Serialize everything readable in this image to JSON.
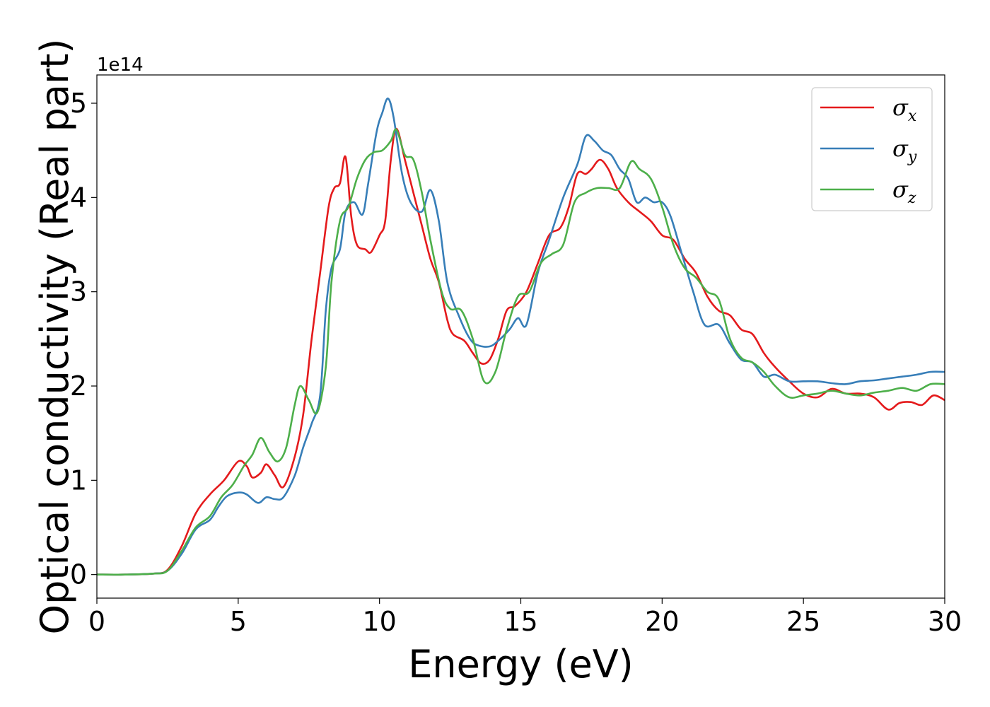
{
  "chart_data": {
    "type": "line",
    "xlabel": "Energy (eV)",
    "ylabel": "Optical conductivity (Real part)",
    "y_offset_label": "1e14",
    "xlim": [
      0,
      30
    ],
    "ylim": [
      -0.25,
      5.3
    ],
    "y_scale": 100000000000000.0,
    "x_ticks": [
      0,
      5,
      10,
      15,
      20,
      25,
      30
    ],
    "y_ticks": [
      0,
      1,
      2,
      3,
      4,
      5
    ],
    "grid": false,
    "legend_position": "top-right",
    "series": [
      {
        "name": "σx",
        "base": "σ",
        "sub": "x",
        "color": "#e41a1c",
        "points": [
          [
            0,
            0
          ],
          [
            1,
            0
          ],
          [
            2,
            0.01
          ],
          [
            2.5,
            0.05
          ],
          [
            3,
            0.3
          ],
          [
            3.5,
            0.65
          ],
          [
            4,
            0.85
          ],
          [
            4.5,
            1.0
          ],
          [
            5,
            1.2
          ],
          [
            5.3,
            1.15
          ],
          [
            5.5,
            1.03
          ],
          [
            5.8,
            1.08
          ],
          [
            6,
            1.17
          ],
          [
            6.3,
            1.05
          ],
          [
            6.6,
            0.93
          ],
          [
            7,
            1.25
          ],
          [
            7.3,
            1.7
          ],
          [
            7.6,
            2.5
          ],
          [
            7.9,
            3.2
          ],
          [
            8.2,
            3.9
          ],
          [
            8.4,
            4.1
          ],
          [
            8.6,
            4.15
          ],
          [
            8.8,
            4.43
          ],
          [
            9,
            3.8
          ],
          [
            9.2,
            3.5
          ],
          [
            9.5,
            3.45
          ],
          [
            9.7,
            3.42
          ],
          [
            10,
            3.6
          ],
          [
            10.2,
            3.75
          ],
          [
            10.4,
            4.4
          ],
          [
            10.6,
            4.73
          ],
          [
            10.9,
            4.4
          ],
          [
            11.2,
            4.05
          ],
          [
            11.5,
            3.7
          ],
          [
            11.8,
            3.35
          ],
          [
            12.1,
            3.1
          ],
          [
            12.4,
            2.7
          ],
          [
            12.6,
            2.55
          ],
          [
            13,
            2.48
          ],
          [
            13.3,
            2.35
          ],
          [
            13.6,
            2.24
          ],
          [
            13.9,
            2.28
          ],
          [
            14.2,
            2.5
          ],
          [
            14.5,
            2.8
          ],
          [
            14.8,
            2.85
          ],
          [
            15.2,
            3.0
          ],
          [
            15.6,
            3.3
          ],
          [
            16,
            3.6
          ],
          [
            16.4,
            3.68
          ],
          [
            16.7,
            3.9
          ],
          [
            17,
            4.25
          ],
          [
            17.3,
            4.25
          ],
          [
            17.5,
            4.3
          ],
          [
            17.8,
            4.4
          ],
          [
            18.1,
            4.3
          ],
          [
            18.4,
            4.1
          ],
          [
            18.8,
            3.95
          ],
          [
            19.2,
            3.85
          ],
          [
            19.6,
            3.75
          ],
          [
            20,
            3.6
          ],
          [
            20.4,
            3.55
          ],
          [
            20.8,
            3.35
          ],
          [
            21.2,
            3.2
          ],
          [
            21.6,
            2.95
          ],
          [
            22,
            2.8
          ],
          [
            22.4,
            2.75
          ],
          [
            22.8,
            2.6
          ],
          [
            23.2,
            2.55
          ],
          [
            23.6,
            2.35
          ],
          [
            24,
            2.2
          ],
          [
            24.5,
            2.05
          ],
          [
            25,
            1.92
          ],
          [
            25.5,
            1.88
          ],
          [
            26,
            1.97
          ],
          [
            26.5,
            1.92
          ],
          [
            27,
            1.92
          ],
          [
            27.5,
            1.88
          ],
          [
            28,
            1.75
          ],
          [
            28.4,
            1.82
          ],
          [
            28.8,
            1.83
          ],
          [
            29.2,
            1.8
          ],
          [
            29.6,
            1.9
          ],
          [
            30,
            1.85
          ]
        ]
      },
      {
        "name": "σy",
        "base": "σ",
        "sub": "y",
        "color": "#377eb8",
        "points": [
          [
            0,
            0
          ],
          [
            1,
            0
          ],
          [
            2,
            0.01
          ],
          [
            2.5,
            0.04
          ],
          [
            3,
            0.22
          ],
          [
            3.5,
            0.48
          ],
          [
            4,
            0.58
          ],
          [
            4.3,
            0.72
          ],
          [
            4.6,
            0.83
          ],
          [
            5,
            0.87
          ],
          [
            5.3,
            0.85
          ],
          [
            5.7,
            0.76
          ],
          [
            6,
            0.82
          ],
          [
            6.3,
            0.8
          ],
          [
            6.6,
            0.82
          ],
          [
            7,
            1.05
          ],
          [
            7.3,
            1.35
          ],
          [
            7.6,
            1.6
          ],
          [
            7.9,
            1.9
          ],
          [
            8.1,
            2.8
          ],
          [
            8.3,
            3.25
          ],
          [
            8.6,
            3.45
          ],
          [
            8.8,
            3.85
          ],
          [
            9.1,
            3.95
          ],
          [
            9.4,
            3.82
          ],
          [
            9.6,
            4.15
          ],
          [
            9.9,
            4.7
          ],
          [
            10.1,
            4.9
          ],
          [
            10.3,
            5.05
          ],
          [
            10.5,
            4.85
          ],
          [
            10.8,
            4.25
          ],
          [
            11.1,
            3.95
          ],
          [
            11.5,
            3.85
          ],
          [
            11.8,
            4.08
          ],
          [
            12.1,
            3.75
          ],
          [
            12.4,
            3.1
          ],
          [
            12.8,
            2.75
          ],
          [
            13.2,
            2.5
          ],
          [
            13.5,
            2.43
          ],
          [
            13.9,
            2.42
          ],
          [
            14.2,
            2.48
          ],
          [
            14.6,
            2.6
          ],
          [
            14.9,
            2.72
          ],
          [
            15.2,
            2.65
          ],
          [
            15.6,
            3.2
          ],
          [
            16,
            3.55
          ],
          [
            16.5,
            4.0
          ],
          [
            17,
            4.35
          ],
          [
            17.3,
            4.65
          ],
          [
            17.6,
            4.6
          ],
          [
            17.9,
            4.5
          ],
          [
            18.2,
            4.45
          ],
          [
            18.5,
            4.3
          ],
          [
            18.8,
            4.2
          ],
          [
            19.1,
            3.95
          ],
          [
            19.4,
            4.0
          ],
          [
            19.7,
            3.95
          ],
          [
            20,
            3.95
          ],
          [
            20.3,
            3.8
          ],
          [
            20.7,
            3.4
          ],
          [
            21.1,
            3.0
          ],
          [
            21.5,
            2.65
          ],
          [
            22,
            2.65
          ],
          [
            22.4,
            2.45
          ],
          [
            22.8,
            2.28
          ],
          [
            23.2,
            2.25
          ],
          [
            23.6,
            2.1
          ],
          [
            24,
            2.12
          ],
          [
            24.5,
            2.05
          ],
          [
            25,
            2.05
          ],
          [
            25.5,
            2.05
          ],
          [
            26,
            2.03
          ],
          [
            26.5,
            2.02
          ],
          [
            27,
            2.05
          ],
          [
            27.5,
            2.06
          ],
          [
            28,
            2.08
          ],
          [
            28.5,
            2.1
          ],
          [
            29,
            2.12
          ],
          [
            29.5,
            2.15
          ],
          [
            30,
            2.15
          ]
        ]
      },
      {
        "name": "σz",
        "base": "σ",
        "sub": "z",
        "color": "#4daf4a",
        "points": [
          [
            0,
            0
          ],
          [
            1,
            0
          ],
          [
            2,
            0.01
          ],
          [
            2.5,
            0.04
          ],
          [
            3,
            0.25
          ],
          [
            3.5,
            0.5
          ],
          [
            4,
            0.62
          ],
          [
            4.4,
            0.82
          ],
          [
            4.8,
            0.95
          ],
          [
            5.2,
            1.15
          ],
          [
            5.5,
            1.27
          ],
          [
            5.8,
            1.45
          ],
          [
            6.1,
            1.3
          ],
          [
            6.4,
            1.2
          ],
          [
            6.7,
            1.35
          ],
          [
            7,
            1.8
          ],
          [
            7.2,
            2.0
          ],
          [
            7.5,
            1.85
          ],
          [
            7.8,
            1.72
          ],
          [
            8.1,
            2.2
          ],
          [
            8.3,
            3.1
          ],
          [
            8.6,
            3.75
          ],
          [
            8.9,
            3.9
          ],
          [
            9.2,
            4.2
          ],
          [
            9.5,
            4.4
          ],
          [
            9.8,
            4.48
          ],
          [
            10.1,
            4.5
          ],
          [
            10.4,
            4.6
          ],
          [
            10.6,
            4.72
          ],
          [
            10.9,
            4.45
          ],
          [
            11.2,
            4.4
          ],
          [
            11.5,
            4.05
          ],
          [
            11.8,
            3.55
          ],
          [
            12.2,
            3.0
          ],
          [
            12.5,
            2.82
          ],
          [
            12.9,
            2.8
          ],
          [
            13.3,
            2.5
          ],
          [
            13.7,
            2.05
          ],
          [
            14.1,
            2.15
          ],
          [
            14.5,
            2.6
          ],
          [
            14.9,
            2.95
          ],
          [
            15.3,
            3.0
          ],
          [
            15.7,
            3.3
          ],
          [
            16.1,
            3.4
          ],
          [
            16.5,
            3.5
          ],
          [
            16.9,
            3.95
          ],
          [
            17.3,
            4.05
          ],
          [
            17.7,
            4.1
          ],
          [
            18.1,
            4.1
          ],
          [
            18.5,
            4.1
          ],
          [
            18.9,
            4.38
          ],
          [
            19.2,
            4.3
          ],
          [
            19.6,
            4.2
          ],
          [
            20,
            3.9
          ],
          [
            20.4,
            3.5
          ],
          [
            20.8,
            3.25
          ],
          [
            21.2,
            3.15
          ],
          [
            21.6,
            3.0
          ],
          [
            22,
            2.92
          ],
          [
            22.4,
            2.5
          ],
          [
            22.8,
            2.3
          ],
          [
            23.2,
            2.25
          ],
          [
            23.6,
            2.15
          ],
          [
            24,
            2.0
          ],
          [
            24.5,
            1.88
          ],
          [
            25,
            1.9
          ],
          [
            25.5,
            1.92
          ],
          [
            26,
            1.95
          ],
          [
            26.5,
            1.92
          ],
          [
            27,
            1.9
          ],
          [
            27.5,
            1.93
          ],
          [
            28,
            1.95
          ],
          [
            28.5,
            1.98
          ],
          [
            29,
            1.95
          ],
          [
            29.5,
            2.02
          ],
          [
            30,
            2.02
          ]
        ]
      }
    ]
  }
}
